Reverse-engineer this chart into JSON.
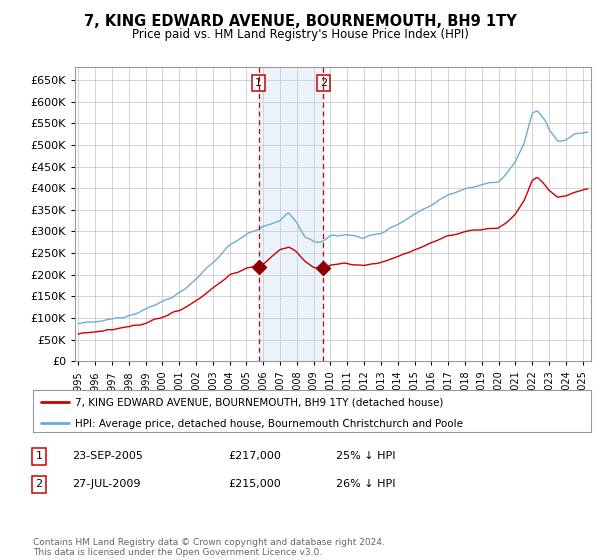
{
  "title": "7, KING EDWARD AVENUE, BOURNEMOUTH, BH9 1TY",
  "subtitle": "Price paid vs. HM Land Registry's House Price Index (HPI)",
  "ylim": [
    0,
    680000
  ],
  "yticks": [
    0,
    50000,
    100000,
    150000,
    200000,
    250000,
    300000,
    350000,
    400000,
    450000,
    500000,
    550000,
    600000,
    650000
  ],
  "xlim_start": 1994.8,
  "xlim_end": 2025.5,
  "hpi_color": "#6baed6",
  "price_color": "#cc0000",
  "marker_color": "#8b0000",
  "annotation_bg": "#dce6f1",
  "annotation_border": "#cc0000",
  "grid_color": "#cccccc",
  "sale1_x": 2005.73,
  "sale1_y": 217000,
  "sale1_label": "1",
  "sale2_x": 2009.57,
  "sale2_y": 215000,
  "sale2_label": "2",
  "legend_line1": "7, KING EDWARD AVENUE, BOURNEMOUTH, BH9 1TY (detached house)",
  "legend_line2": "HPI: Average price, detached house, Bournemouth Christchurch and Poole",
  "table_row1": [
    "1",
    "23-SEP-2005",
    "£217,000",
    "25% ↓ HPI"
  ],
  "table_row2": [
    "2",
    "27-JUL-2009",
    "£215,000",
    "26% ↓ HPI"
  ],
  "footer": "Contains HM Land Registry data © Crown copyright and database right 2024.\nThis data is licensed under the Open Government Licence v3.0.",
  "background_color": "#ffffff"
}
